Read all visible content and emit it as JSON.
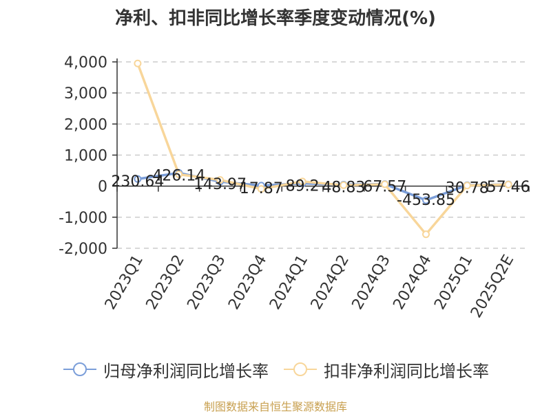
{
  "chart_data": {
    "type": "line",
    "title": "净利、扣非同比增长率季度变动情况(%)",
    "categories": [
      "2023Q1",
      "2023Q2",
      "2023Q3",
      "2023Q4",
      "2024Q1",
      "2024Q2",
      "2024Q3",
      "2024Q4",
      "2025Q1",
      "2025Q2E"
    ],
    "y_ticks": [
      "4,000",
      "3,000",
      "2,000",
      "1,000",
      "0",
      "-1,000",
      "-2,000"
    ],
    "ylim": [
      -2000,
      4000
    ],
    "grid": true,
    "legend_position": "bottom",
    "series": [
      {
        "name": "归母净利润同比增长率",
        "color": "#7b9ed9",
        "values": [
          230.64,
          426.14,
          143.97,
          17.87,
          89.2,
          48.83,
          67.57,
          -453.85,
          30.78,
          57.46
        ],
        "labels": [
          "230.64",
          "426.14",
          "143.97",
          "17.87",
          "89.2",
          "48.83",
          "67.57",
          "-453.85",
          "30.78",
          "57.46"
        ]
      },
      {
        "name": "扣非净利润同比增长率",
        "color": "#f8d69a",
        "values": [
          3950,
          380,
          200,
          -90,
          150,
          30,
          60,
          -1550,
          20,
          50
        ]
      }
    ]
  },
  "source_text": "制图数据来自恒生聚源数据库"
}
